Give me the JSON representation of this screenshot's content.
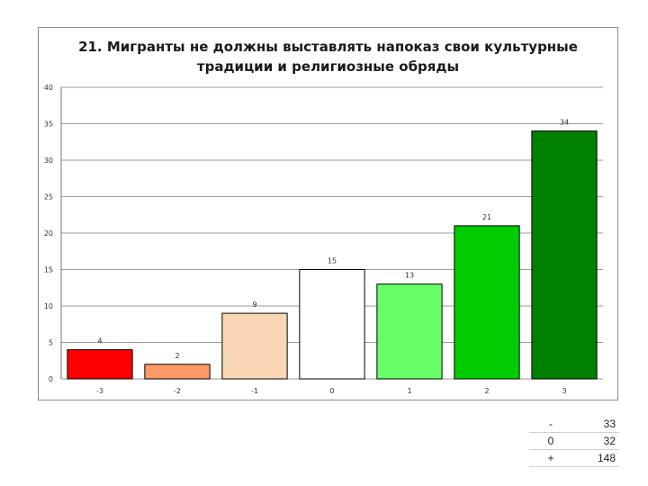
{
  "chart_data": {
    "type": "bar",
    "title_lines": [
      "21. Мигранты не должны выставлять напоказ свои культурные",
      "традиции и религиозные обряды"
    ],
    "categories": [
      "-3",
      "-2",
      "-1",
      "0",
      "1",
      "2",
      "3"
    ],
    "values": [
      4,
      2,
      9,
      15,
      13,
      21,
      34
    ],
    "data_labels": [
      "4",
      "2",
      "9",
      "15",
      "13",
      "21",
      "34"
    ],
    "colors": [
      "#ff0000",
      "#ff9966",
      "#fad7b4",
      "#ffffff",
      "#66ff66",
      "#00cc00",
      "#008000"
    ],
    "ylim": [
      0,
      40
    ],
    "yticks": [
      0,
      5,
      10,
      15,
      20,
      25,
      30,
      35,
      40
    ],
    "grid": true,
    "legend": "none"
  },
  "summary_table": [
    {
      "symbol": "-",
      "value": "33"
    },
    {
      "symbol": "0",
      "value": "32"
    },
    {
      "symbol": "+",
      "value": "148"
    }
  ]
}
